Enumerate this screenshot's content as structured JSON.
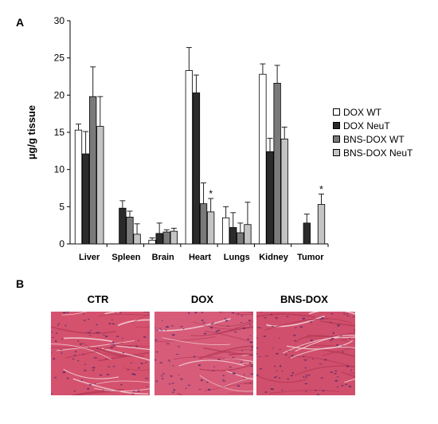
{
  "panels": {
    "a_label": "A",
    "b_label": "B"
  },
  "chart_data": {
    "type": "bar",
    "title": "",
    "xlabel": "",
    "ylabel": "µg/g tissue",
    "ylim": [
      0,
      30
    ],
    "yticks": [
      0,
      5,
      10,
      15,
      20,
      25,
      30
    ],
    "grid": false,
    "legend_position": "right",
    "categories": [
      "Liver",
      "Spleen",
      "Brain",
      "Heart",
      "Lungs",
      "Kidney",
      "Tumor"
    ],
    "series": [
      {
        "name": "DOX WT",
        "color": "#ffffff",
        "values": [
          15.3,
          null,
          0.5,
          23.3,
          3.5,
          22.8,
          null
        ],
        "errors": [
          0.8,
          null,
          0.3,
          3.1,
          1.5,
          1.4,
          null
        ]
      },
      {
        "name": "DOX NeuT",
        "color": "#2b2b2b",
        "values": [
          12.1,
          4.8,
          1.4,
          20.3,
          2.2,
          12.4,
          2.8
        ],
        "errors": [
          3.0,
          1.0,
          1.4,
          2.4,
          2.0,
          1.8,
          1.2
        ]
      },
      {
        "name": "BNS-DOX WT",
        "color": "#7a7a7a",
        "values": [
          19.8,
          3.6,
          1.6,
          5.4,
          1.5,
          21.6,
          null
        ],
        "errors": [
          4.0,
          0.8,
          0.3,
          2.8,
          1.3,
          2.4,
          null
        ]
      },
      {
        "name": "BNS-DOX NeuT",
        "color": "#c4c4c4",
        "values": [
          15.8,
          1.3,
          1.7,
          4.3,
          2.6,
          14.1,
          5.3
        ],
        "errors": [
          4.0,
          1.4,
          0.4,
          1.8,
          3.0,
          1.6,
          1.4
        ]
      }
    ],
    "annotations": [
      {
        "text": "*",
        "category": "Heart",
        "series": "BNS-DOX NeuT"
      },
      {
        "text": "*",
        "category": "Tumor",
        "series": "BNS-DOX NeuT"
      }
    ]
  },
  "micrographs": [
    {
      "title": "CTR",
      "tone": "#d4526e"
    },
    {
      "title": "DOX",
      "tone": "#d65c79"
    },
    {
      "title": "BNS-DOX",
      "tone": "#d04f6c"
    }
  ]
}
